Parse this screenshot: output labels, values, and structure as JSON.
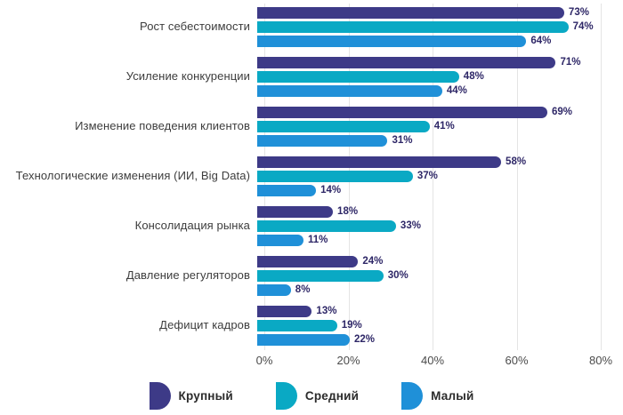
{
  "chart_data": {
    "type": "bar",
    "orientation": "horizontal",
    "title": "",
    "categories": [
      "Рост себестоимости",
      "Усиление конкуренции",
      "Изменение поведения клиентов",
      "Технологические изменения (ИИ, Big Data)",
      "Консолидация рынка",
      "Давление регуляторов",
      "Дефицит кадров"
    ],
    "series": [
      {
        "name": "Крупный",
        "color": "#3d3a87",
        "values": [
          73,
          71,
          69,
          58,
          18,
          24,
          13
        ]
      },
      {
        "name": "Средний",
        "color": "#0aa9c4",
        "values": [
          74,
          48,
          41,
          37,
          33,
          30,
          19
        ]
      },
      {
        "name": "Малый",
        "color": "#1f90d8",
        "values": [
          64,
          44,
          31,
          14,
          11,
          8,
          22
        ]
      }
    ],
    "value_suffix": "%",
    "xlim": [
      0,
      80
    ],
    "x_ticks": [
      "0%",
      "20%",
      "40%",
      "60%",
      "80%"
    ],
    "grid": true,
    "legend_position": "bottom"
  },
  "colors": {
    "background": "#ffffff",
    "gridline": "#e4e4e4",
    "category_label": "#3d3d3d",
    "value_label": "#2e2767",
    "axis_label": "#4b4b4b",
    "legend_label": "#2b2b2b"
  }
}
